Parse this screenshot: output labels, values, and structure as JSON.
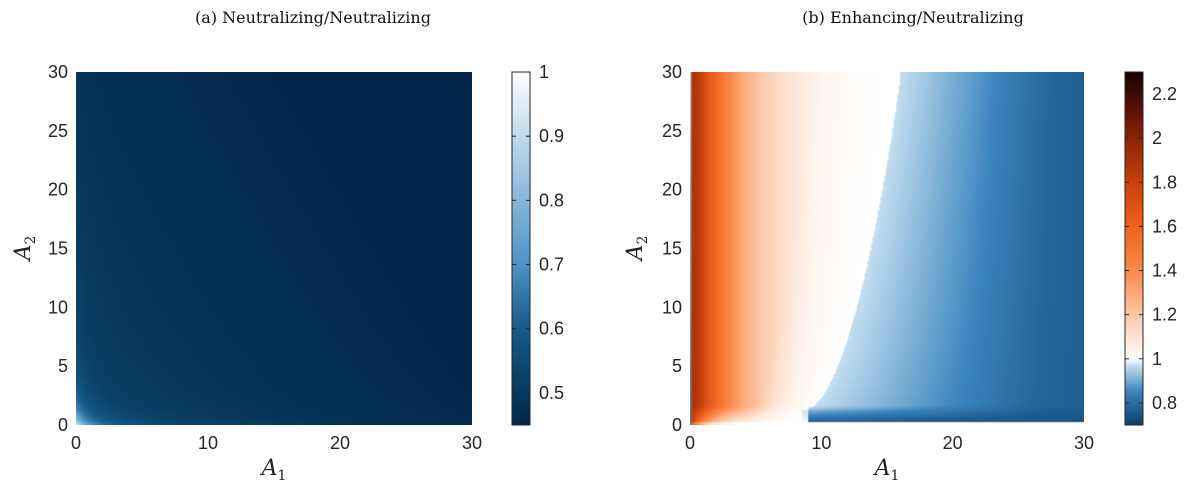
{
  "chart_data": [
    {
      "type": "heatmap",
      "title": "(a) Neutralizing/Neutralizing",
      "xlabel": "A",
      "xlabel_sub": "1",
      "ylabel": "A",
      "ylabel_sub": "2",
      "xlim": [
        0,
        30
      ],
      "ylim": [
        0,
        30
      ],
      "xticks": [
        0,
        10,
        20,
        30
      ],
      "yticks": [
        0,
        5,
        10,
        15,
        20,
        25,
        30
      ],
      "colorbar": {
        "min": 0.45,
        "max": 1.0,
        "ticks": [
          0.5,
          0.6,
          0.7,
          0.8,
          0.9,
          1
        ]
      },
      "colormap": [
        {
          "v": 0.45,
          "color": "#00274a"
        },
        {
          "v": 0.6,
          "color": "#165b88"
        },
        {
          "v": 0.7,
          "color": "#4d93c4"
        },
        {
          "v": 0.8,
          "color": "#86b7da"
        },
        {
          "v": 0.9,
          "color": "#c1dbed"
        },
        {
          "v": 1.0,
          "color": "#ffffff"
        }
      ]
    },
    {
      "type": "heatmap",
      "title": "(b) Enhancing/Neutralizing",
      "xlabel": "A",
      "xlabel_sub": "1",
      "ylabel": "A",
      "ylabel_sub": "2",
      "xlim": [
        0,
        30
      ],
      "ylim": [
        0,
        30
      ],
      "xticks": [
        0,
        10,
        20,
        30
      ],
      "yticks": [
        0,
        5,
        10,
        15,
        20,
        25,
        30
      ],
      "colorbar": {
        "min": 0.7,
        "max": 2.3,
        "ticks": [
          0.8,
          1,
          1.2,
          1.4,
          1.6,
          1.8,
          2,
          2.2
        ]
      },
      "colormap": [
        {
          "v": 0.7,
          "color": "#0b3f6b"
        },
        {
          "v": 0.85,
          "color": "#3a85bd"
        },
        {
          "v": 0.97,
          "color": "#c4def0"
        },
        {
          "v": 1.0,
          "color": "#ffffff"
        },
        {
          "v": 1.15,
          "color": "#fcd6bd"
        },
        {
          "v": 1.4,
          "color": "#fa8a4a"
        },
        {
          "v": 1.6,
          "color": "#f0621e"
        },
        {
          "v": 1.8,
          "color": "#c9410c"
        },
        {
          "v": 2.0,
          "color": "#8c2305"
        },
        {
          "v": 2.3,
          "color": "#180000"
        }
      ]
    }
  ]
}
